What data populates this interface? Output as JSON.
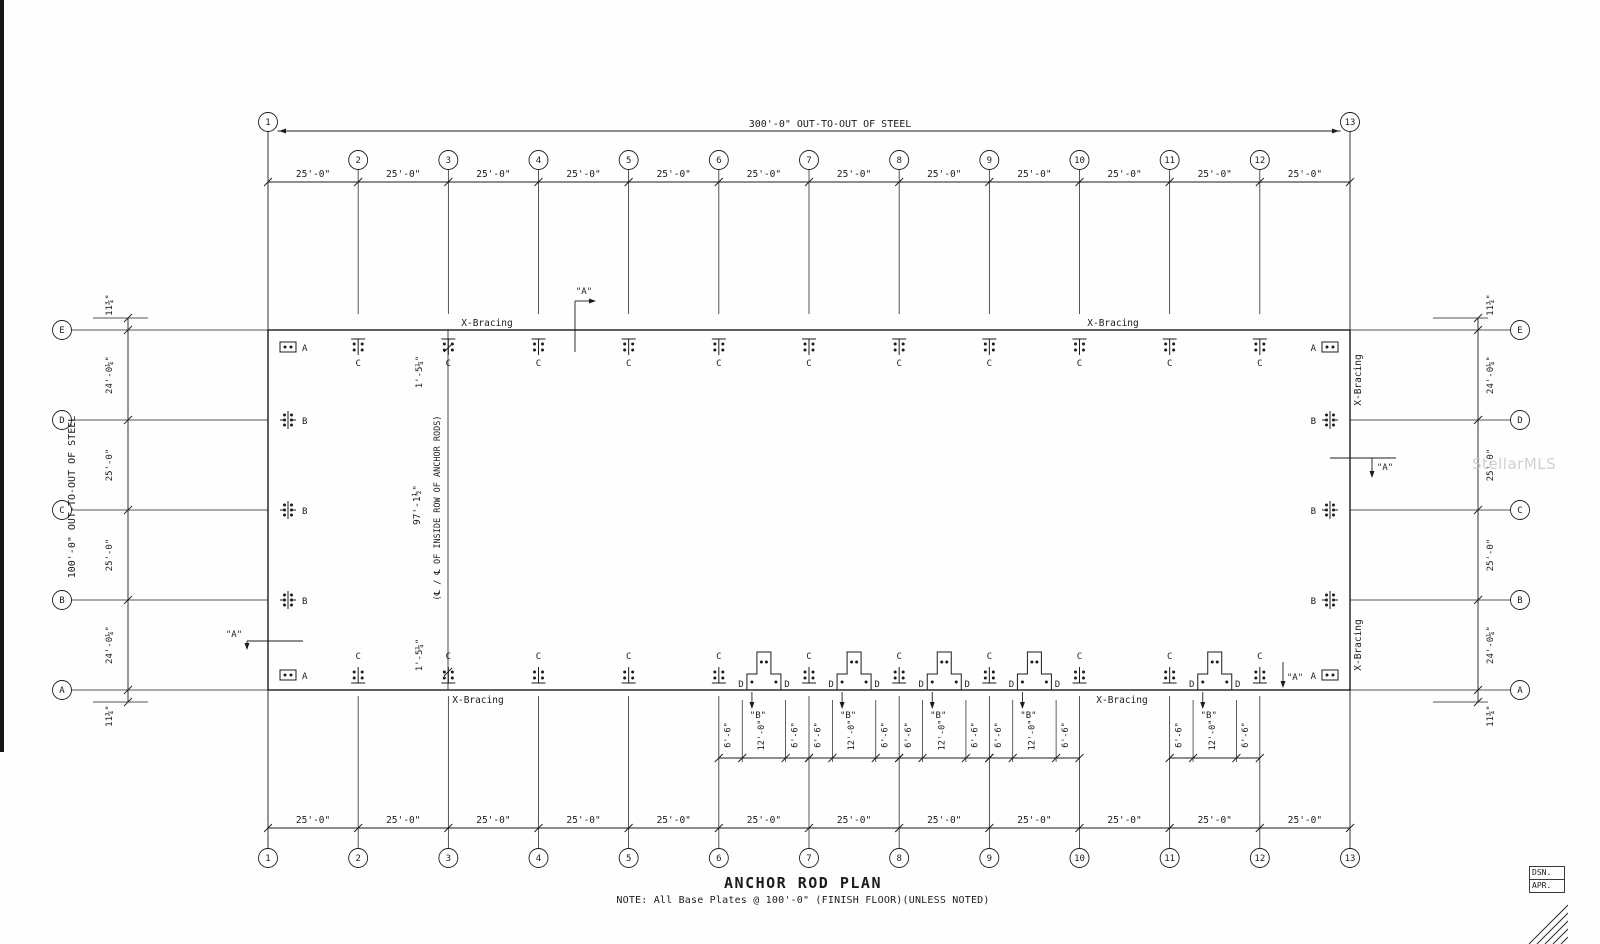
{
  "drawing": {
    "title": "ANCHOR ROD PLAN",
    "note": "NOTE:  All Base Plates @ 100'-0\" (FINISH FLOOR)(UNLESS NOTED)",
    "watermark": "StellarMLS",
    "title_block": {
      "rows": [
        "DSN.",
        "APR."
      ]
    }
  },
  "grids": {
    "columns": [
      "1",
      "2",
      "3",
      "4",
      "5",
      "6",
      "7",
      "8",
      "9",
      "10",
      "11",
      "12",
      "13"
    ],
    "rows": [
      "E",
      "D",
      "C",
      "B",
      "A"
    ]
  },
  "dimensions": {
    "overall_top": "300'-0\"   OUT-TO-OUT OF STEEL",
    "overall_left": "100'-0\"   OUT-TO-OUT OF STEEL",
    "bay": "25'-0\"",
    "row_chain": [
      "11¾\"",
      "24'-0¼\"",
      "25'-0\"",
      "25'-0\"",
      "24'-0¼\"",
      "11¾\""
    ],
    "interior": {
      "edge_offset": "1'-5¼\"",
      "inside_span": "97'-1½\"",
      "inside_note": "(℄ / ℄  OF INSIDE ROW OF ANCHOR RODS)"
    },
    "sub_chain": [
      "6'-6\"",
      "12'-0\"",
      "6'-6\""
    ]
  },
  "labels": {
    "x_bracing": "X-Bracing",
    "section_a": "\"A\"",
    "section_b": "\"B\"",
    "plate_a": "A",
    "plate_b": "B",
    "plate_c": "C",
    "plate_d": "D"
  }
}
